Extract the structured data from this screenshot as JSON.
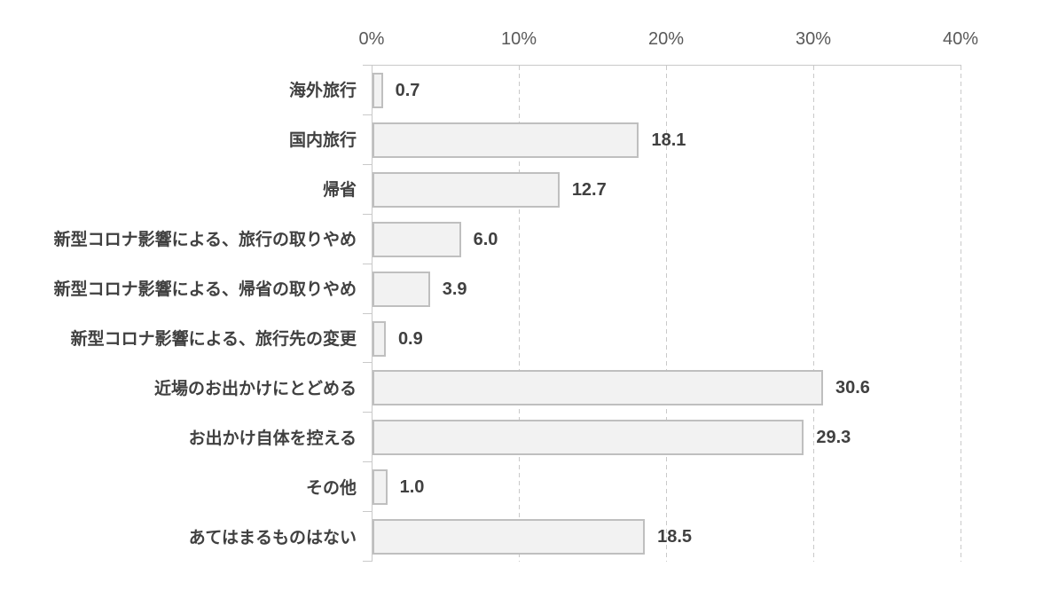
{
  "chart_data": {
    "type": "bar",
    "orientation": "horizontal",
    "title": "",
    "xlabel": "",
    "ylabel": "",
    "categories": [
      "海外旅行",
      "国内旅行",
      "帰省",
      "新型コロナ影響による、旅行の取りやめ",
      "新型コロナ影響による、帰省の取りやめ",
      "新型コロナ影響による、旅行先の変更",
      "近場のお出かけにとどめる",
      "お出かけ自体を控える",
      "その他",
      "あてはまるものはない"
    ],
    "values": [
      0.7,
      18.1,
      12.7,
      6.0,
      3.9,
      0.9,
      30.6,
      29.3,
      1.0,
      18.5
    ],
    "value_labels": [
      "0.7",
      "18.1",
      "12.7",
      "6.0",
      "3.9",
      "0.9",
      "30.6",
      "29.3",
      "1.0",
      "18.5"
    ],
    "x_axis": {
      "position": "top",
      "ticks": [
        "0%",
        "10%",
        "20%",
        "30%",
        "40%"
      ],
      "tick_values": [
        0,
        10,
        20,
        30,
        40
      ],
      "min": 0,
      "max": 40,
      "unit": "%"
    },
    "grid": {
      "vertical_gridlines": true,
      "style": "dashed"
    },
    "legend": "none",
    "colors": {
      "background": "#ffffff",
      "bar_fill": "#f2f2f2",
      "bar_border": "#bfbfbf",
      "grid_line": "#c9c9c9",
      "axis_line": "#c9c9c9",
      "tick_label": "#595959",
      "category_label": "#404040",
      "value_label": "#404040"
    }
  }
}
